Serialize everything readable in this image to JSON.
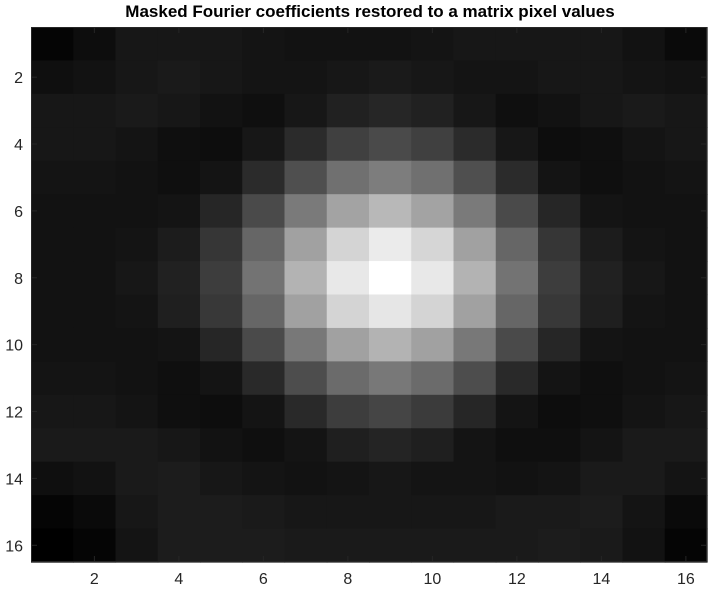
{
  "chart_data": {
    "type": "heatmap",
    "title": "Masked Fourier coefficients restored to a matrix pixel values",
    "xlabel": "",
    "ylabel": "",
    "xlim": [
      0.5,
      16.5
    ],
    "ylim": [
      16.5,
      0.5
    ],
    "colormap": "gray",
    "clim": [
      0,
      1
    ],
    "x_ticks": [
      2,
      4,
      6,
      8,
      10,
      12,
      14,
      16
    ],
    "y_ticks": [
      2,
      4,
      6,
      8,
      10,
      12,
      14,
      16
    ],
    "rows": 16,
    "cols": 16,
    "values": [
      [
        0.02,
        0.05,
        0.09,
        0.09,
        0.09,
        0.08,
        0.07,
        0.07,
        0.07,
        0.08,
        0.09,
        0.09,
        0.09,
        0.09,
        0.07,
        0.04
      ],
      [
        0.06,
        0.07,
        0.09,
        0.1,
        0.09,
        0.08,
        0.08,
        0.09,
        0.1,
        0.09,
        0.08,
        0.08,
        0.09,
        0.09,
        0.08,
        0.07
      ],
      [
        0.09,
        0.09,
        0.1,
        0.09,
        0.07,
        0.06,
        0.09,
        0.13,
        0.15,
        0.13,
        0.09,
        0.06,
        0.07,
        0.09,
        0.1,
        0.09
      ],
      [
        0.09,
        0.09,
        0.08,
        0.06,
        0.05,
        0.09,
        0.17,
        0.25,
        0.29,
        0.25,
        0.17,
        0.09,
        0.05,
        0.06,
        0.08,
        0.09
      ],
      [
        0.08,
        0.08,
        0.07,
        0.06,
        0.08,
        0.17,
        0.31,
        0.44,
        0.49,
        0.44,
        0.31,
        0.17,
        0.08,
        0.06,
        0.07,
        0.08
      ],
      [
        0.07,
        0.07,
        0.07,
        0.08,
        0.15,
        0.29,
        0.48,
        0.64,
        0.72,
        0.64,
        0.48,
        0.29,
        0.15,
        0.08,
        0.07,
        0.07
      ],
      [
        0.07,
        0.07,
        0.08,
        0.11,
        0.21,
        0.4,
        0.63,
        0.83,
        0.92,
        0.84,
        0.63,
        0.4,
        0.21,
        0.11,
        0.08,
        0.07
      ],
      [
        0.07,
        0.07,
        0.09,
        0.13,
        0.24,
        0.45,
        0.7,
        0.91,
        1.0,
        0.91,
        0.7,
        0.45,
        0.24,
        0.13,
        0.09,
        0.07
      ],
      [
        0.07,
        0.07,
        0.08,
        0.12,
        0.22,
        0.4,
        0.63,
        0.83,
        0.9,
        0.83,
        0.63,
        0.4,
        0.22,
        0.12,
        0.08,
        0.07
      ],
      [
        0.07,
        0.07,
        0.07,
        0.08,
        0.15,
        0.29,
        0.47,
        0.63,
        0.7,
        0.63,
        0.47,
        0.29,
        0.15,
        0.08,
        0.07,
        0.07
      ],
      [
        0.08,
        0.08,
        0.07,
        0.06,
        0.08,
        0.16,
        0.3,
        0.42,
        0.47,
        0.42,
        0.3,
        0.16,
        0.08,
        0.06,
        0.07,
        0.08
      ],
      [
        0.09,
        0.09,
        0.08,
        0.06,
        0.05,
        0.08,
        0.16,
        0.24,
        0.27,
        0.23,
        0.15,
        0.08,
        0.05,
        0.06,
        0.08,
        0.09
      ],
      [
        0.1,
        0.1,
        0.1,
        0.09,
        0.07,
        0.06,
        0.08,
        0.12,
        0.14,
        0.12,
        0.08,
        0.06,
        0.06,
        0.08,
        0.1,
        0.1
      ],
      [
        0.06,
        0.07,
        0.1,
        0.11,
        0.09,
        0.08,
        0.07,
        0.08,
        0.09,
        0.08,
        0.08,
        0.07,
        0.08,
        0.1,
        0.1,
        0.08
      ],
      [
        0.02,
        0.04,
        0.09,
        0.11,
        0.11,
        0.1,
        0.09,
        0.09,
        0.09,
        0.09,
        0.09,
        0.1,
        0.1,
        0.11,
        0.08,
        0.04
      ],
      [
        0.0,
        0.02,
        0.08,
        0.11,
        0.11,
        0.11,
        0.1,
        0.1,
        0.1,
        0.1,
        0.1,
        0.1,
        0.11,
        0.1,
        0.07,
        0.02
      ]
    ]
  }
}
